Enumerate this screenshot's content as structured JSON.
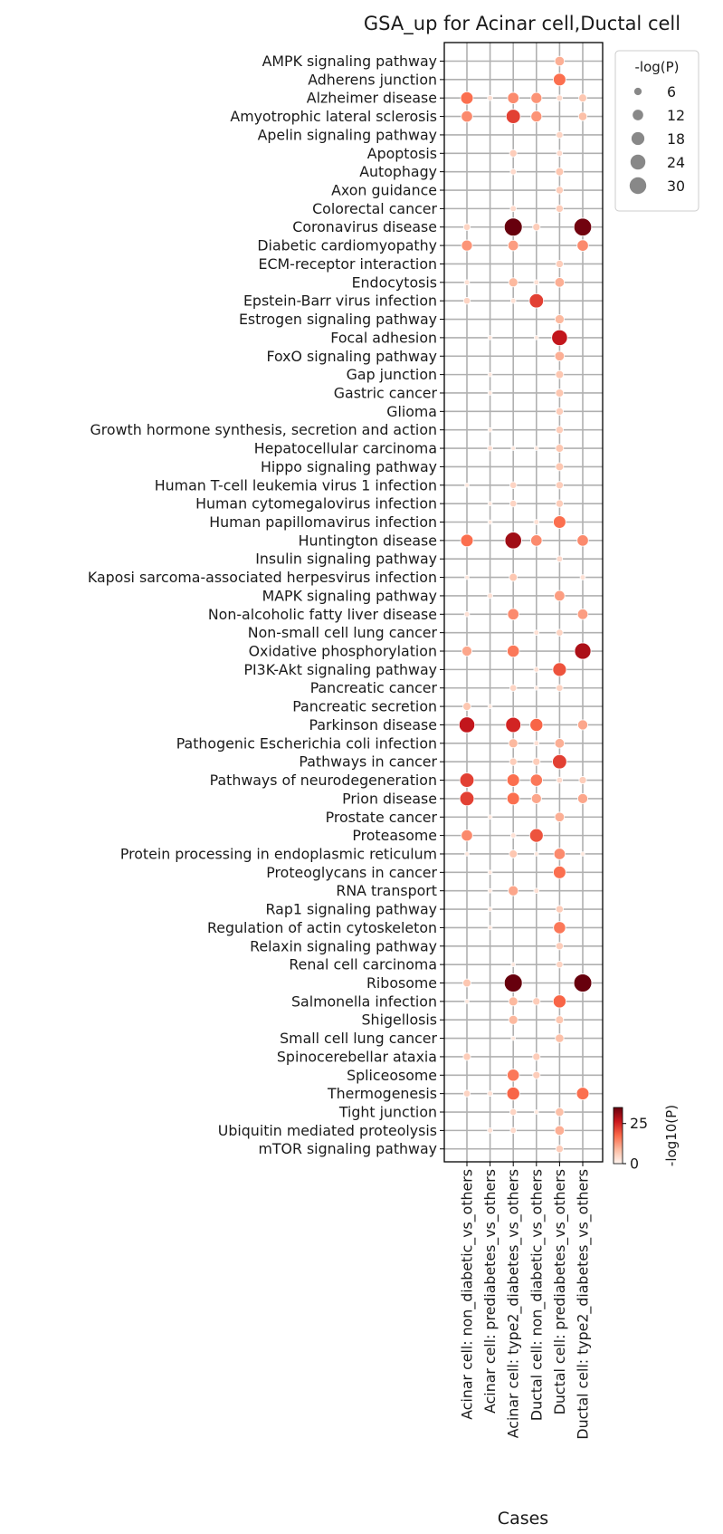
{
  "chart_data": {
    "type": "scatter",
    "title": "GSA_up for Acinar cell,Ductal cell",
    "xlabel": "Cases",
    "ylabel": "",
    "x_categories": [
      "Acinar cell: non_diabetic_vs_others",
      "Acinar cell: prediabetes_vs_others",
      "Acinar cell: type2_diabetes_vs_others",
      "Ductal cell: non_diabetic_vs_others",
      "Ductal cell: prediabetes_vs_others",
      "Ductal cell: type2_diabetes_vs_others"
    ],
    "y_categories": [
      "AMPK signaling pathway",
      "Adherens junction",
      "Alzheimer disease",
      "Amyotrophic lateral sclerosis",
      "Apelin signaling pathway",
      "Apoptosis",
      "Autophagy",
      "Axon guidance",
      "Colorectal cancer",
      "Coronavirus disease",
      "Diabetic cardiomyopathy",
      "ECM-receptor interaction",
      "Endocytosis",
      "Epstein-Barr virus infection",
      "Estrogen signaling pathway",
      "Focal adhesion",
      "FoxO signaling pathway",
      "Gap junction",
      "Gastric cancer",
      "Glioma",
      "Growth hormone synthesis, secretion and action",
      "Hepatocellular carcinoma",
      "Hippo signaling pathway",
      "Human T-cell leukemia virus 1 infection",
      "Human cytomegalovirus infection",
      "Human papillomavirus infection",
      "Huntington disease",
      "Insulin signaling pathway",
      "Kaposi sarcoma-associated herpesvirus infection",
      "MAPK signaling pathway",
      "Non-alcoholic fatty liver disease",
      "Non-small cell lung cancer",
      "Oxidative phosphorylation",
      "PI3K-Akt signaling pathway",
      "Pancreatic cancer",
      "Pancreatic secretion",
      "Parkinson disease",
      "Pathogenic Escherichia coli infection",
      "Pathways in cancer",
      "Pathways of neurodegeneration",
      "Prion disease",
      "Prostate cancer",
      "Proteasome",
      "Protein processing in endoplasmic reticulum",
      "Proteoglycans in cancer",
      "RNA transport",
      "Rap1 signaling pathway",
      "Regulation of actin cytoskeleton",
      "Relaxin signaling pathway",
      "Renal cell carcinoma",
      "Ribosome",
      "Salmonella infection",
      "Shigellosis",
      "Small cell lung cancer",
      "Spinocerebellar ataxia",
      "Spliceosome",
      "Thermogenesis",
      "Tight junction",
      "Ubiquitin mediated proteolysis",
      "mTOR signaling pathway"
    ],
    "values": [
      [
        0,
        0,
        0,
        0,
        10,
        0
      ],
      [
        0,
        0,
        0,
        0,
        17,
        0
      ],
      [
        17,
        3,
        14,
        13,
        4,
        7
      ],
      [
        14,
        0,
        22,
        13,
        0,
        8
      ],
      [
        0,
        0,
        0,
        0,
        5,
        0
      ],
      [
        0,
        0,
        6,
        0,
        4,
        0
      ],
      [
        0,
        0,
        4,
        0,
        7,
        0
      ],
      [
        0,
        0,
        0,
        0,
        6,
        0
      ],
      [
        0,
        0,
        4,
        0,
        6,
        0
      ],
      [
        5,
        0,
        35,
        6,
        0,
        34
      ],
      [
        13,
        0,
        12,
        0,
        0,
        14
      ],
      [
        0,
        0,
        0,
        0,
        6,
        0
      ],
      [
        3,
        0,
        9,
        3,
        10,
        0
      ],
      [
        5,
        0,
        3,
        22,
        0,
        0
      ],
      [
        0,
        0,
        0,
        0,
        9,
        0
      ],
      [
        0,
        2,
        0,
        2,
        27,
        0
      ],
      [
        0,
        0,
        0,
        0,
        10,
        0
      ],
      [
        0,
        2,
        0,
        0,
        7,
        0
      ],
      [
        0,
        2,
        0,
        0,
        7,
        0
      ],
      [
        0,
        0,
        0,
        0,
        6,
        0
      ],
      [
        0,
        2,
        0,
        0,
        6,
        0
      ],
      [
        0,
        3,
        2,
        2,
        7,
        0
      ],
      [
        0,
        0,
        0,
        0,
        7,
        0
      ],
      [
        2,
        0,
        5,
        0,
        6,
        0
      ],
      [
        0,
        2,
        5,
        0,
        6,
        0
      ],
      [
        0,
        2,
        0,
        3,
        17,
        0
      ],
      [
        17,
        0,
        30,
        14,
        0,
        14
      ],
      [
        0,
        0,
        0,
        0,
        4,
        0
      ],
      [
        2,
        0,
        7,
        0,
        0,
        3
      ],
      [
        0,
        3,
        0,
        0,
        12,
        0
      ],
      [
        3,
        0,
        14,
        0,
        0,
        12
      ],
      [
        0,
        0,
        0,
        3,
        5,
        0
      ],
      [
        11,
        0,
        16,
        0,
        0,
        29
      ],
      [
        0,
        0,
        0,
        3,
        20,
        0
      ],
      [
        0,
        0,
        5,
        2,
        5,
        0
      ],
      [
        7,
        2,
        0,
        0,
        0,
        0
      ],
      [
        27,
        0,
        25,
        18,
        0,
        11
      ],
      [
        0,
        0,
        9,
        3,
        10,
        0
      ],
      [
        0,
        0,
        6,
        6,
        22,
        0
      ],
      [
        22,
        0,
        17,
        16,
        4,
        6
      ],
      [
        22,
        0,
        17,
        11,
        0,
        11
      ],
      [
        0,
        2,
        0,
        0,
        10,
        0
      ],
      [
        14,
        0,
        3,
        20,
        0,
        0
      ],
      [
        2,
        0,
        7,
        2,
        14,
        2
      ],
      [
        0,
        2,
        0,
        0,
        17,
        0
      ],
      [
        0,
        2,
        11,
        3,
        0,
        0
      ],
      [
        0,
        2,
        0,
        0,
        6,
        0
      ],
      [
        0,
        2,
        0,
        0,
        16,
        0
      ],
      [
        0,
        0,
        0,
        0,
        6,
        0
      ],
      [
        0,
        0,
        2,
        0,
        5,
        0
      ],
      [
        7,
        0,
        35,
        0,
        0,
        35
      ],
      [
        2,
        0,
        9,
        6,
        18,
        0
      ],
      [
        0,
        0,
        9,
        0,
        7,
        0
      ],
      [
        0,
        0,
        2,
        0,
        8,
        0
      ],
      [
        6,
        0,
        0,
        6,
        0,
        0
      ],
      [
        0,
        0,
        16,
        6,
        0,
        0
      ],
      [
        5,
        3,
        18,
        0,
        0,
        17
      ],
      [
        0,
        0,
        5,
        2,
        8,
        0
      ],
      [
        0,
        3,
        4,
        0,
        10,
        0
      ],
      [
        0,
        0,
        0,
        0,
        6,
        0
      ]
    ],
    "size_legend": {
      "title": "-log(P)",
      "values": [
        6,
        12,
        18,
        24,
        30
      ],
      "labels": [
        "6",
        "12",
        "18",
        "24",
        "30"
      ],
      "placement": "top-right"
    },
    "colorbar": {
      "label": "-log10(P)",
      "range": [
        0,
        35
      ],
      "ticks": [
        0,
        25
      ],
      "tick_labels": [
        "0",
        "25"
      ],
      "colors": [
        "#fff5f0",
        "#fcbba1",
        "#fb6a4a",
        "#cb181d",
        "#67000d"
      ],
      "placement": "bottom-right"
    },
    "grid": true,
    "marker_edge": "#ffffff",
    "legend_marker_color": "#888888"
  }
}
